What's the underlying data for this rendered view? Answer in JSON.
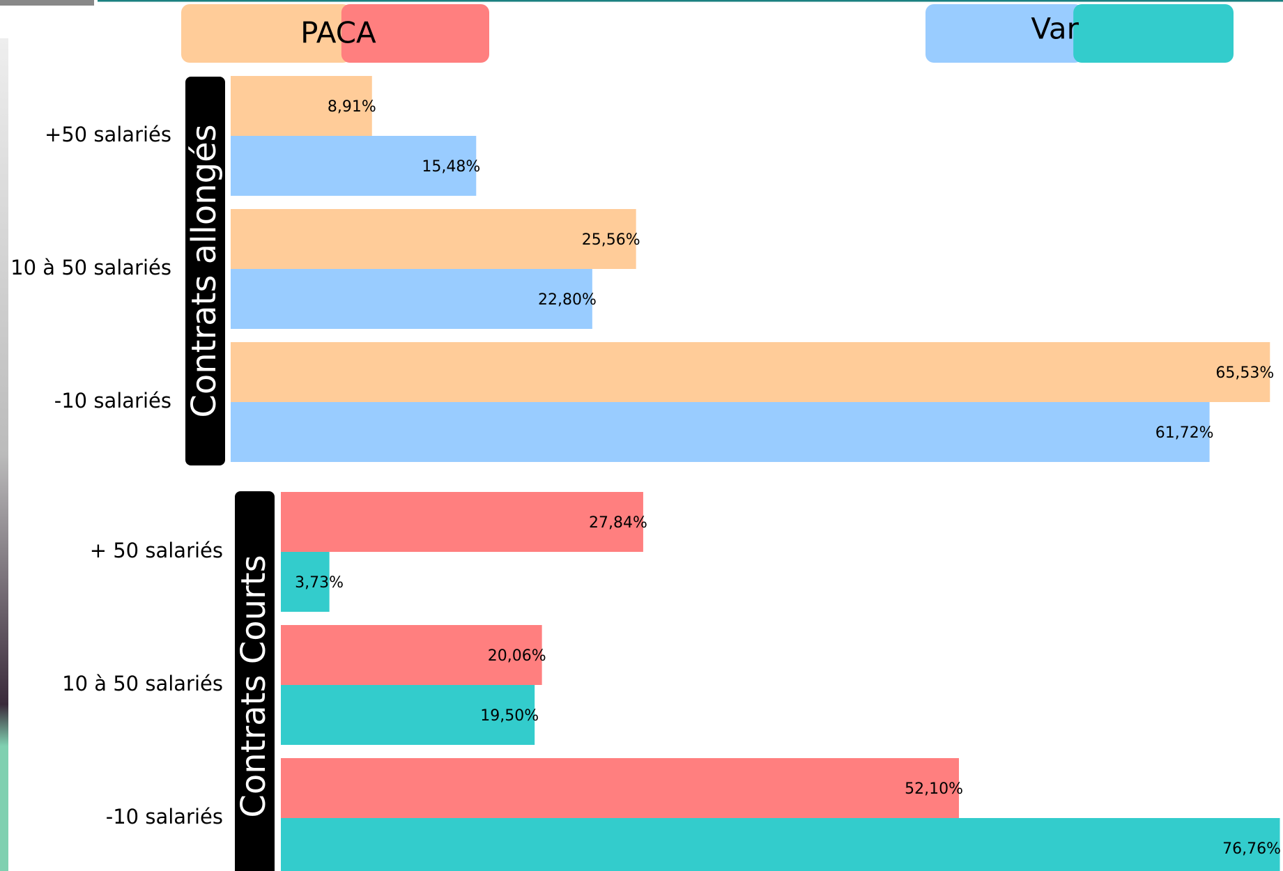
{
  "chart_data": [
    {
      "type": "bar",
      "orientation": "horizontal",
      "group_label": "Contrats allongés",
      "categories": [
        "+50 salariés",
        "10 à 50 salariés",
        "-10 salariés"
      ],
      "series": [
        {
          "name": "PACA",
          "color": "#FFCC99",
          "values": [
            8.91,
            25.56,
            65.53
          ],
          "value_labels": [
            "8,91%",
            "25,56%",
            "65,53%"
          ]
        },
        {
          "name": "Var",
          "color": "#99CCFF",
          "values": [
            15.48,
            22.8,
            61.72
          ],
          "value_labels": [
            "15,48%",
            "22,80%",
            "61,72%"
          ]
        }
      ],
      "xlim": [
        0,
        66
      ]
    },
    {
      "type": "bar",
      "orientation": "horizontal",
      "group_label": "Contrats Courts",
      "categories": [
        "+ 50 salariés",
        "10 à 50 salariés",
        "-10 salariés"
      ],
      "series": [
        {
          "name": "PACA",
          "color": "#FF7F7F",
          "values": [
            27.84,
            20.06,
            52.1
          ],
          "value_labels": [
            "27,84%",
            "20,06%",
            "52,10%"
          ]
        },
        {
          "name": "Var",
          "color": "#33CCCC",
          "values": [
            3.73,
            19.5,
            76.76
          ],
          "value_labels": [
            "3,73%",
            "19,50%",
            "76,76%"
          ]
        }
      ],
      "xlim": [
        0,
        77
      ]
    }
  ]
}
